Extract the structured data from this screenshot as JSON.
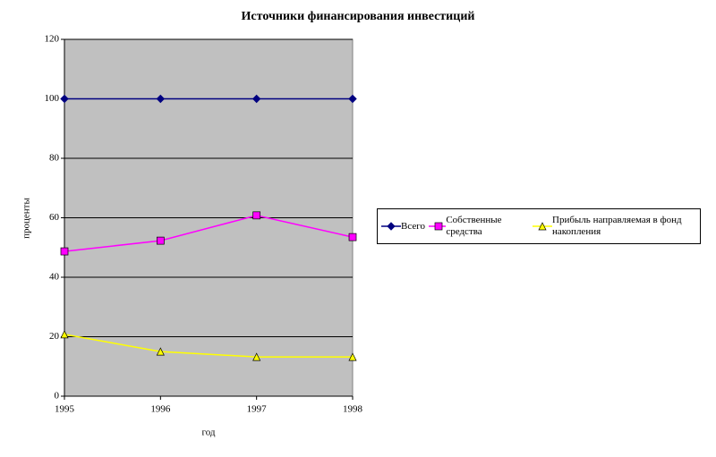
{
  "chart_data": {
    "type": "line",
    "title": "Источники финансирования инвестиций",
    "x_label": "год",
    "y_label": "проценты",
    "x": [
      1995,
      1996,
      1997,
      1998
    ],
    "xlim": [
      1995,
      1998
    ],
    "xticks": [
      1995,
      1996,
      1997,
      1998
    ],
    "ylim": [
      0,
      120
    ],
    "yticks": [
      0,
      20,
      40,
      60,
      80,
      100,
      120
    ],
    "grid": true,
    "legend": "right",
    "series": [
      {
        "name": "Всего",
        "color": "#000080",
        "marker": "diamond",
        "values": [
          100,
          100,
          100,
          100
        ]
      },
      {
        "name": "Собственные средства",
        "color": "#ff00ff",
        "marker": "square",
        "values": [
          48.7,
          52.3,
          60.8,
          53.5
        ]
      },
      {
        "name": "Прибыль направляемая в фонд накопления",
        "color": "#ffff00",
        "marker": "triangle",
        "values": [
          20.8,
          15,
          13.2,
          13.2
        ]
      }
    ]
  }
}
